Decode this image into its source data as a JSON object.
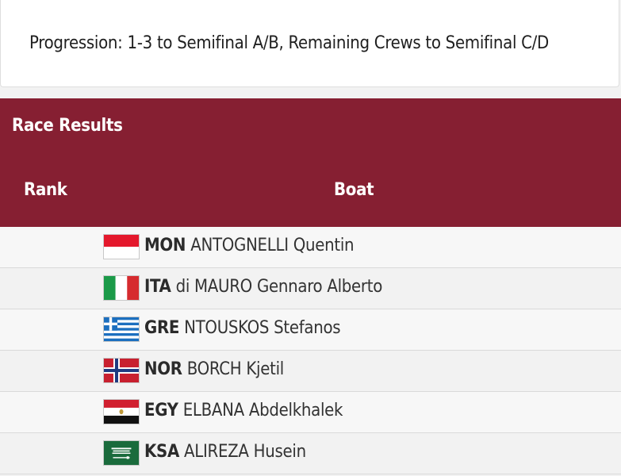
{
  "progression": "Progression: 1-3 to Semifinal A/B, Remaining Crews to Semifinal C/D",
  "results": {
    "title": "Race Results",
    "columns": {
      "rank": "Rank",
      "boat": "Boat"
    },
    "rows": [
      {
        "code": "MON",
        "name": "ANTOGNELLI Quentin",
        "flag": "monaco-flag-icon"
      },
      {
        "code": "ITA",
        "name": "di MAURO Gennaro Alberto",
        "flag": "italy-flag-icon"
      },
      {
        "code": "GRE",
        "name": "NTOUSKOS Stefanos",
        "flag": "greece-flag-icon"
      },
      {
        "code": "NOR",
        "name": "BORCH Kjetil",
        "flag": "norway-flag-icon"
      },
      {
        "code": "EGY",
        "name": "ELBANA Abdelkhalek",
        "flag": "egypt-flag-icon"
      },
      {
        "code": "KSA",
        "name": "ALIREZA Husein",
        "flag": "saudi-arabia-flag-icon"
      }
    ]
  },
  "colors": {
    "header": "#861f32"
  }
}
